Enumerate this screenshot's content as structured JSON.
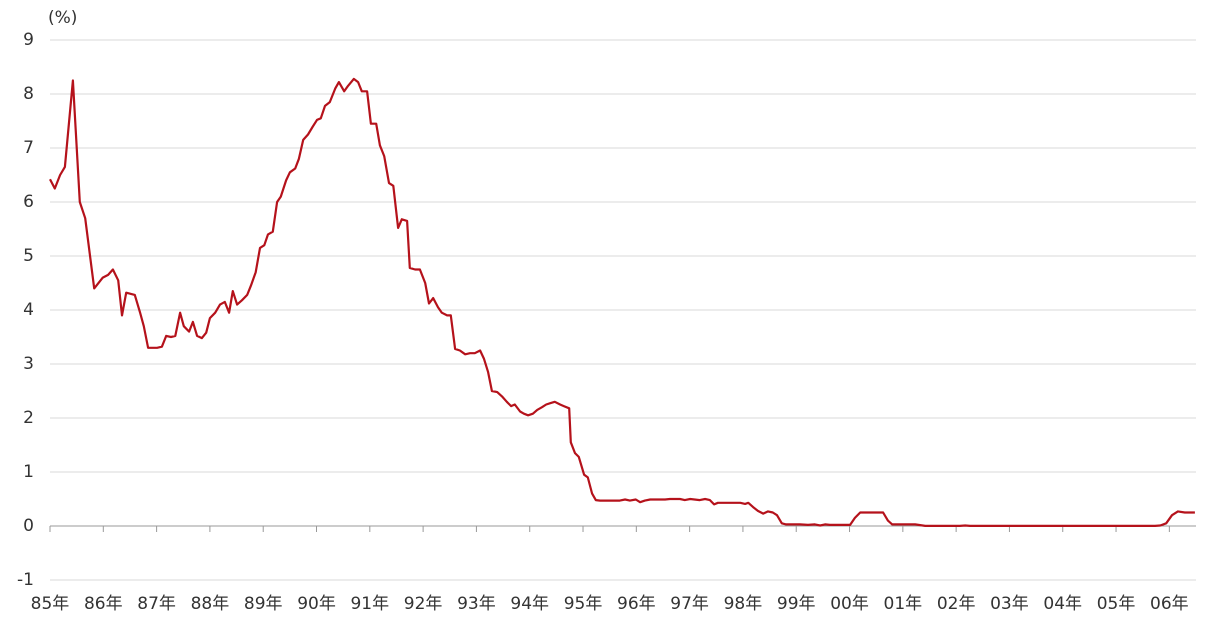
{
  "chart_data": {
    "type": "line",
    "y_label": "(%)",
    "ylim": [
      -1,
      9
    ],
    "yticks": [
      -1,
      0,
      1,
      2,
      3,
      4,
      5,
      6,
      7,
      8,
      9
    ],
    "grid": true,
    "xlim": [
      1985,
      2006.5
    ],
    "xticks": [
      {
        "value": 1985,
        "label": "85年"
      },
      {
        "value": 1986,
        "label": "86年"
      },
      {
        "value": 1987,
        "label": "87年"
      },
      {
        "value": 1988,
        "label": "88年"
      },
      {
        "value": 1989,
        "label": "89年"
      },
      {
        "value": 1990,
        "label": "90年"
      },
      {
        "value": 1991,
        "label": "91年"
      },
      {
        "value": 1992,
        "label": "92年"
      },
      {
        "value": 1993,
        "label": "93年"
      },
      {
        "value": 1994,
        "label": "94年"
      },
      {
        "value": 1995,
        "label": "95年"
      },
      {
        "value": 1996,
        "label": "96年"
      },
      {
        "value": 1997,
        "label": "97年"
      },
      {
        "value": 1998,
        "label": "98年"
      },
      {
        "value": 1999,
        "label": "99年"
      },
      {
        "value": 2000,
        "label": "00年"
      },
      {
        "value": 2001,
        "label": "01年"
      },
      {
        "value": 2002,
        "label": "02年"
      },
      {
        "value": 2003,
        "label": "03年"
      },
      {
        "value": 2004,
        "label": "04年"
      },
      {
        "value": 2005,
        "label": "05年"
      },
      {
        "value": 2006,
        "label": "06年"
      }
    ],
    "x": [
      1985.0,
      1985.09,
      1985.19,
      1985.28,
      1985.43,
      1985.56,
      1985.66,
      1985.83,
      1985.99,
      1986.09,
      1986.18,
      1986.28,
      1986.35,
      1986.43,
      1986.59,
      1986.69,
      1986.76,
      1986.84,
      1987.01,
      1987.1,
      1987.18,
      1987.27,
      1987.35,
      1987.44,
      1987.51,
      1987.61,
      1987.68,
      1987.76,
      1987.85,
      1987.93,
      1988.0,
      1988.1,
      1988.19,
      1988.28,
      1988.36,
      1988.43,
      1988.51,
      1988.6,
      1988.7,
      1988.77,
      1988.86,
      1988.94,
      1989.02,
      1989.09,
      1989.18,
      1989.26,
      1989.33,
      1989.43,
      1989.5,
      1989.6,
      1989.67,
      1989.75,
      1989.84,
      1989.92,
      1990.01,
      1990.08,
      1990.16,
      1990.25,
      1990.35,
      1990.42,
      1990.52,
      1990.59,
      1990.7,
      1990.78,
      1990.85,
      1990.95,
      1991.02,
      1991.12,
      1991.19,
      1991.27,
      1991.36,
      1991.44,
      1991.53,
      1991.6,
      1991.7,
      1991.75,
      1991.85,
      1991.94,
      1992.04,
      1992.11,
      1992.19,
      1992.28,
      1992.35,
      1992.45,
      1992.52,
      1992.6,
      1992.69,
      1992.79,
      1992.88,
      1992.97,
      1993.07,
      1993.14,
      1993.22,
      1993.29,
      1993.39,
      1993.48,
      1993.57,
      1993.65,
      1993.72,
      1993.82,
      1993.89,
      1993.97,
      1994.06,
      1994.14,
      1994.23,
      1994.31,
      1994.4,
      1994.47,
      1994.57,
      1994.64,
      1994.74,
      1994.77,
      1994.85,
      1994.92,
      1995.02,
      1995.09,
      1995.17,
      1995.24,
      1995.32,
      1995.69,
      1995.79,
      1995.88,
      1995.99,
      1996.07,
      1996.16,
      1996.26,
      1996.54,
      1996.63,
      1996.82,
      1996.91,
      1997.01,
      1997.19,
      1997.29,
      1997.38,
      1997.46,
      1997.53,
      1997.95,
      1998.04,
      1998.1,
      1998.19,
      1998.28,
      1998.38,
      1998.47,
      1998.56,
      1998.64,
      1998.73,
      1998.81,
      1999.07,
      1999.22,
      1999.35,
      1999.45,
      1999.54,
      1999.63,
      2000.01,
      2000.1,
      2000.2,
      2000.63,
      2000.72,
      2000.8,
      2001.23,
      2001.42,
      2002.07,
      2002.17,
      2002.26,
      2005.73,
      2005.83,
      2005.94,
      2006.05,
      2006.16,
      2006.29,
      2006.48
    ],
    "series": [
      {
        "color": "#b5121b",
        "values": [
          6.42,
          6.25,
          6.5,
          6.65,
          8.25,
          6.0,
          5.7,
          4.4,
          4.6,
          4.65,
          4.75,
          4.55,
          3.9,
          4.32,
          4.28,
          3.95,
          3.7,
          3.3,
          3.3,
          3.32,
          3.52,
          3.5,
          3.52,
          3.95,
          3.7,
          3.6,
          3.78,
          3.52,
          3.48,
          3.58,
          3.85,
          3.95,
          4.1,
          4.15,
          3.95,
          4.35,
          4.1,
          4.18,
          4.28,
          4.45,
          4.7,
          5.15,
          5.2,
          5.4,
          5.45,
          6.0,
          6.1,
          6.4,
          6.55,
          6.62,
          6.8,
          7.15,
          7.25,
          7.38,
          7.52,
          7.55,
          7.78,
          7.85,
          8.1,
          8.22,
          8.05,
          8.15,
          8.28,
          8.22,
          8.05,
          8.05,
          7.45,
          7.45,
          7.05,
          6.85,
          6.35,
          6.3,
          5.52,
          5.68,
          5.65,
          4.78,
          4.75,
          4.75,
          4.5,
          4.12,
          4.22,
          4.05,
          3.95,
          3.9,
          3.9,
          3.28,
          3.25,
          3.18,
          3.2,
          3.2,
          3.25,
          3.1,
          2.85,
          2.5,
          2.48,
          2.4,
          2.3,
          2.22,
          2.25,
          2.12,
          2.08,
          2.05,
          2.08,
          2.15,
          2.2,
          2.25,
          2.28,
          2.3,
          2.25,
          2.22,
          2.18,
          1.55,
          1.35,
          1.28,
          0.95,
          0.9,
          0.6,
          0.48,
          0.47,
          0.47,
          0.49,
          0.47,
          0.49,
          0.44,
          0.47,
          0.49,
          0.49,
          0.5,
          0.5,
          0.48,
          0.5,
          0.48,
          0.5,
          0.48,
          0.4,
          0.43,
          0.43,
          0.41,
          0.43,
          0.35,
          0.28,
          0.23,
          0.27,
          0.25,
          0.2,
          0.05,
          0.03,
          0.03,
          0.02,
          0.03,
          0.01,
          0.03,
          0.02,
          0.02,
          0.15,
          0.25,
          0.25,
          0.1,
          0.03,
          0.03,
          0.002,
          0.002,
          0.01,
          0.002,
          0.002,
          0.01,
          0.05,
          0.2,
          0.27,
          0.25,
          0.25
        ]
      }
    ]
  }
}
